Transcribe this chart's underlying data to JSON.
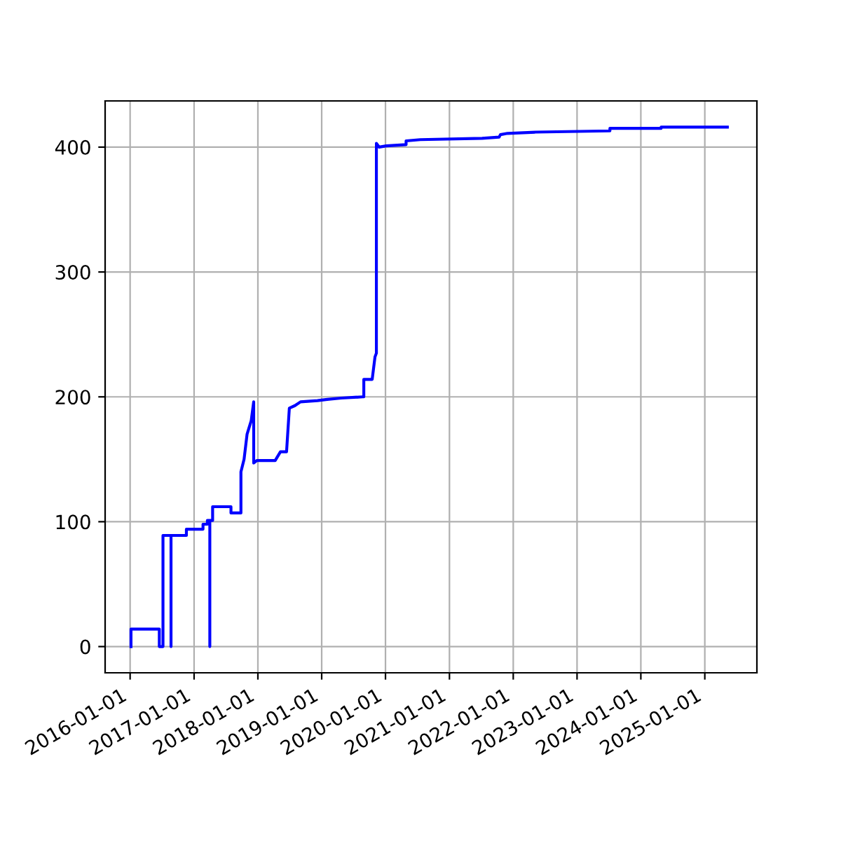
{
  "chart_data": {
    "type": "line",
    "x": [
      "2016-01-06",
      "2016-01-06",
      "2016-06-16",
      "2016-06-16",
      "2016-07-07",
      "2016-07-07",
      "2016-08-22",
      "2016-08-22",
      "2016-08-22",
      "2016-11-18",
      "2016-11-18",
      "2017-02-21",
      "2017-02-21",
      "2017-03-18",
      "2017-03-18",
      "2017-04-01",
      "2017-04-01",
      "2017-04-01",
      "2017-04-17",
      "2017-04-17",
      "2017-07-31",
      "2017-07-31",
      "2017-09-26",
      "2017-09-26",
      "2017-10-14",
      "2017-10-31",
      "2017-11-24",
      "2017-12-08",
      "2017-12-08",
      "2017-12-26",
      "2018-04-10",
      "2018-05-10",
      "2018-06-14",
      "2018-06-30",
      "2018-08-01",
      "2018-09-02",
      "2018-12-08",
      "2019-02-02",
      "2019-04-23",
      "2019-08-22",
      "2019-08-30",
      "2019-08-30",
      "2019-10-17",
      "2019-11-02",
      "2019-11-10",
      "2019-11-10",
      "2019-11-26",
      "2020-01-06",
      "2020-04-28",
      "2020-04-28",
      "2020-07-18",
      "2021-07-07",
      "2021-10-12",
      "2021-10-20",
      "2021-11-29",
      "2022-05-09",
      "2023-07-08",
      "2023-07-08",
      "2024-04-26",
      "2024-04-26",
      "2025-05-10"
    ],
    "values": [
      0,
      14,
      14,
      0,
      0,
      89,
      89,
      0,
      89,
      89,
      94,
      94,
      98,
      98,
      101,
      101,
      0,
      101,
      101,
      112,
      112,
      107,
      107,
      140,
      150,
      170,
      181,
      196,
      147,
      149,
      149,
      156,
      156,
      191,
      193,
      196,
      197,
      198,
      199,
      200,
      200,
      214,
      214,
      232,
      235,
      403,
      400,
      401,
      402,
      405,
      406,
      407,
      408,
      410,
      411,
      412,
      413,
      415,
      415,
      416,
      416
    ],
    "color": "#0000ff",
    "xlim": [
      "2015-08-11",
      "2025-10-26"
    ],
    "xticks": [
      "2016-01-01",
      "2017-01-01",
      "2018-01-01",
      "2019-01-01",
      "2020-01-01",
      "2021-01-01",
      "2022-01-01",
      "2023-01-01",
      "2024-01-01",
      "2025-01-01"
    ],
    "ylim": [
      -21,
      437
    ],
    "yticks": [
      0,
      100,
      200,
      300,
      400
    ],
    "grid": true
  }
}
